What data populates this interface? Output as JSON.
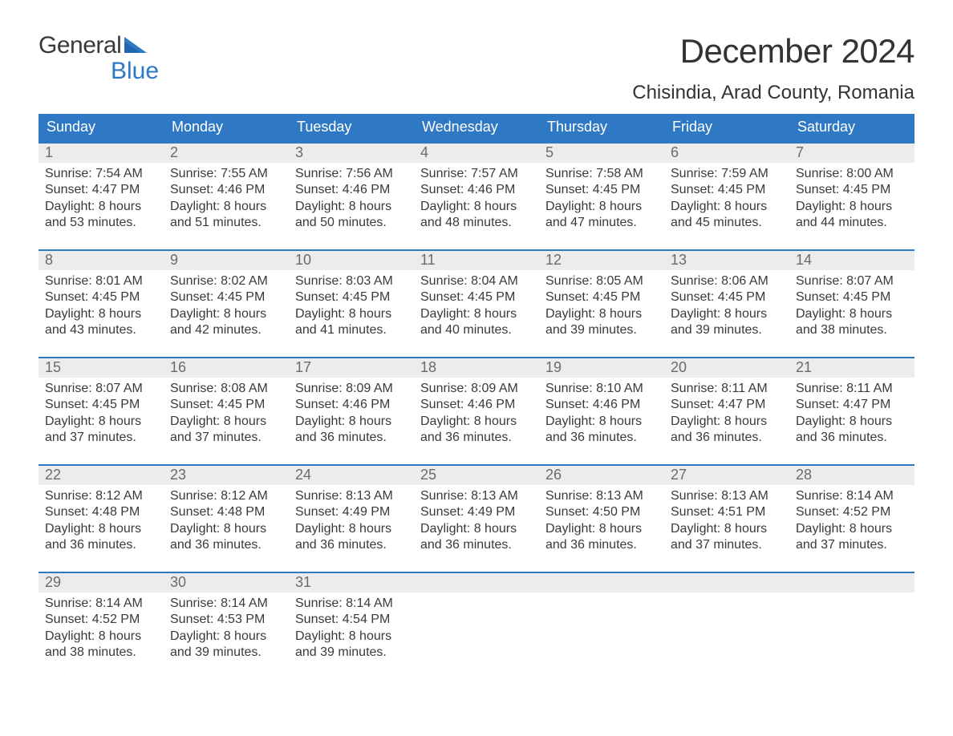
{
  "logo": {
    "text1": "General",
    "text2": "Blue"
  },
  "title": "December 2024",
  "location": "Chisindia, Arad County, Romania",
  "colors": {
    "header_bg": "#2f78c4",
    "header_text": "#ffffff",
    "daynum_bg": "#ececec",
    "daynum_text": "#6b6b6b",
    "body_text": "#3a3a3a",
    "week_border": "#2f78c4",
    "page_bg": "#ffffff",
    "logo_accent": "#2f78c4"
  },
  "typography": {
    "title_fontsize": 42,
    "location_fontsize": 24,
    "dow_fontsize": 18,
    "daynum_fontsize": 18,
    "body_fontsize": 16
  },
  "layout": {
    "columns": 7,
    "rows": 5
  },
  "daysOfWeek": [
    "Sunday",
    "Monday",
    "Tuesday",
    "Wednesday",
    "Thursday",
    "Friday",
    "Saturday"
  ],
  "weeks": [
    [
      {
        "num": "1",
        "sunrise": "Sunrise: 7:54 AM",
        "sunset": "Sunset: 4:47 PM",
        "daylight": "Daylight: 8 hours and 53 minutes."
      },
      {
        "num": "2",
        "sunrise": "Sunrise: 7:55 AM",
        "sunset": "Sunset: 4:46 PM",
        "daylight": "Daylight: 8 hours and 51 minutes."
      },
      {
        "num": "3",
        "sunrise": "Sunrise: 7:56 AM",
        "sunset": "Sunset: 4:46 PM",
        "daylight": "Daylight: 8 hours and 50 minutes."
      },
      {
        "num": "4",
        "sunrise": "Sunrise: 7:57 AM",
        "sunset": "Sunset: 4:46 PM",
        "daylight": "Daylight: 8 hours and 48 minutes."
      },
      {
        "num": "5",
        "sunrise": "Sunrise: 7:58 AM",
        "sunset": "Sunset: 4:45 PM",
        "daylight": "Daylight: 8 hours and 47 minutes."
      },
      {
        "num": "6",
        "sunrise": "Sunrise: 7:59 AM",
        "sunset": "Sunset: 4:45 PM",
        "daylight": "Daylight: 8 hours and 45 minutes."
      },
      {
        "num": "7",
        "sunrise": "Sunrise: 8:00 AM",
        "sunset": "Sunset: 4:45 PM",
        "daylight": "Daylight: 8 hours and 44 minutes."
      }
    ],
    [
      {
        "num": "8",
        "sunrise": "Sunrise: 8:01 AM",
        "sunset": "Sunset: 4:45 PM",
        "daylight": "Daylight: 8 hours and 43 minutes."
      },
      {
        "num": "9",
        "sunrise": "Sunrise: 8:02 AM",
        "sunset": "Sunset: 4:45 PM",
        "daylight": "Daylight: 8 hours and 42 minutes."
      },
      {
        "num": "10",
        "sunrise": "Sunrise: 8:03 AM",
        "sunset": "Sunset: 4:45 PM",
        "daylight": "Daylight: 8 hours and 41 minutes."
      },
      {
        "num": "11",
        "sunrise": "Sunrise: 8:04 AM",
        "sunset": "Sunset: 4:45 PM",
        "daylight": "Daylight: 8 hours and 40 minutes."
      },
      {
        "num": "12",
        "sunrise": "Sunrise: 8:05 AM",
        "sunset": "Sunset: 4:45 PM",
        "daylight": "Daylight: 8 hours and 39 minutes."
      },
      {
        "num": "13",
        "sunrise": "Sunrise: 8:06 AM",
        "sunset": "Sunset: 4:45 PM",
        "daylight": "Daylight: 8 hours and 39 minutes."
      },
      {
        "num": "14",
        "sunrise": "Sunrise: 8:07 AM",
        "sunset": "Sunset: 4:45 PM",
        "daylight": "Daylight: 8 hours and 38 minutes."
      }
    ],
    [
      {
        "num": "15",
        "sunrise": "Sunrise: 8:07 AM",
        "sunset": "Sunset: 4:45 PM",
        "daylight": "Daylight: 8 hours and 37 minutes."
      },
      {
        "num": "16",
        "sunrise": "Sunrise: 8:08 AM",
        "sunset": "Sunset: 4:45 PM",
        "daylight": "Daylight: 8 hours and 37 minutes."
      },
      {
        "num": "17",
        "sunrise": "Sunrise: 8:09 AM",
        "sunset": "Sunset: 4:46 PM",
        "daylight": "Daylight: 8 hours and 36 minutes."
      },
      {
        "num": "18",
        "sunrise": "Sunrise: 8:09 AM",
        "sunset": "Sunset: 4:46 PM",
        "daylight": "Daylight: 8 hours and 36 minutes."
      },
      {
        "num": "19",
        "sunrise": "Sunrise: 8:10 AM",
        "sunset": "Sunset: 4:46 PM",
        "daylight": "Daylight: 8 hours and 36 minutes."
      },
      {
        "num": "20",
        "sunrise": "Sunrise: 8:11 AM",
        "sunset": "Sunset: 4:47 PM",
        "daylight": "Daylight: 8 hours and 36 minutes."
      },
      {
        "num": "21",
        "sunrise": "Sunrise: 8:11 AM",
        "sunset": "Sunset: 4:47 PM",
        "daylight": "Daylight: 8 hours and 36 minutes."
      }
    ],
    [
      {
        "num": "22",
        "sunrise": "Sunrise: 8:12 AM",
        "sunset": "Sunset: 4:48 PM",
        "daylight": "Daylight: 8 hours and 36 minutes."
      },
      {
        "num": "23",
        "sunrise": "Sunrise: 8:12 AM",
        "sunset": "Sunset: 4:48 PM",
        "daylight": "Daylight: 8 hours and 36 minutes."
      },
      {
        "num": "24",
        "sunrise": "Sunrise: 8:13 AM",
        "sunset": "Sunset: 4:49 PM",
        "daylight": "Daylight: 8 hours and 36 minutes."
      },
      {
        "num": "25",
        "sunrise": "Sunrise: 8:13 AM",
        "sunset": "Sunset: 4:49 PM",
        "daylight": "Daylight: 8 hours and 36 minutes."
      },
      {
        "num": "26",
        "sunrise": "Sunrise: 8:13 AM",
        "sunset": "Sunset: 4:50 PM",
        "daylight": "Daylight: 8 hours and 36 minutes."
      },
      {
        "num": "27",
        "sunrise": "Sunrise: 8:13 AM",
        "sunset": "Sunset: 4:51 PM",
        "daylight": "Daylight: 8 hours and 37 minutes."
      },
      {
        "num": "28",
        "sunrise": "Sunrise: 8:14 AM",
        "sunset": "Sunset: 4:52 PM",
        "daylight": "Daylight: 8 hours and 37 minutes."
      }
    ],
    [
      {
        "num": "29",
        "sunrise": "Sunrise: 8:14 AM",
        "sunset": "Sunset: 4:52 PM",
        "daylight": "Daylight: 8 hours and 38 minutes."
      },
      {
        "num": "30",
        "sunrise": "Sunrise: 8:14 AM",
        "sunset": "Sunset: 4:53 PM",
        "daylight": "Daylight: 8 hours and 39 minutes."
      },
      {
        "num": "31",
        "sunrise": "Sunrise: 8:14 AM",
        "sunset": "Sunset: 4:54 PM",
        "daylight": "Daylight: 8 hours and 39 minutes."
      },
      null,
      null,
      null,
      null
    ]
  ]
}
